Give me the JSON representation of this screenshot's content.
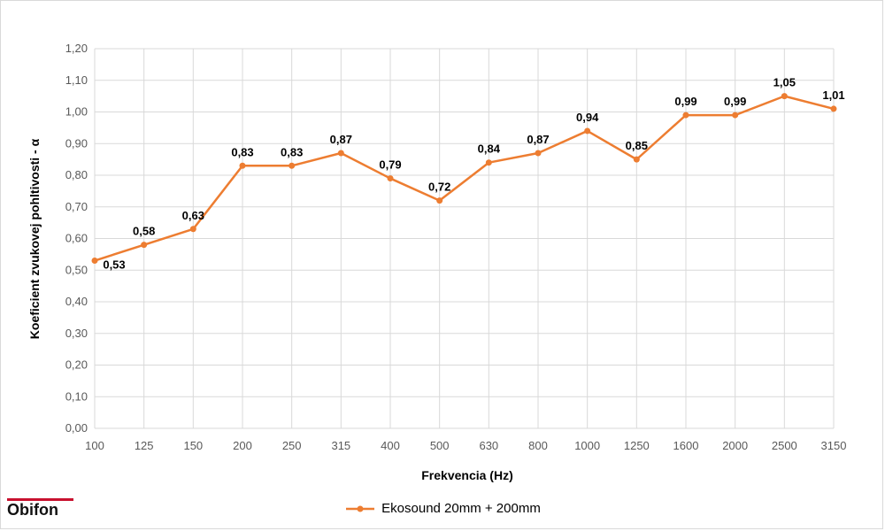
{
  "logo": {
    "text": "Obifon",
    "bar_color": "#c8102e"
  },
  "chart_data": {
    "type": "line",
    "categories": [
      "100",
      "125",
      "150",
      "200",
      "250",
      "315",
      "400",
      "500",
      "630",
      "800",
      "1000",
      "1250",
      "1600",
      "2000",
      "2500",
      "3150"
    ],
    "series": [
      {
        "name": "Ekosound 20mm + 200mm",
        "values": [
          0.53,
          0.58,
          0.63,
          0.83,
          0.83,
          0.87,
          0.79,
          0.72,
          0.84,
          0.87,
          0.94,
          0.85,
          0.99,
          0.99,
          1.05,
          1.01
        ],
        "labels": [
          "0,53",
          "0,58",
          "0,63",
          "0,83",
          "0,83",
          "0,87",
          "0,79",
          "0,72",
          "0,84",
          "0,87",
          "0,94",
          "0,85",
          "0,99",
          "0,99",
          "1,05",
          "1,01"
        ],
        "color": "#ed7d31"
      }
    ],
    "xlabel": "Frekvencia (Hz)",
    "ylabel": "Koeficient zvukovej pohltivosti - α",
    "ylim": [
      0,
      1.2
    ],
    "yticks": [
      "0,00",
      "0,10",
      "0,20",
      "0,30",
      "0,40",
      "0,50",
      "0,60",
      "0,70",
      "0,80",
      "0,90",
      "1,00",
      "1,10",
      "1,20"
    ],
    "grid": true,
    "legend_position": "bottom"
  }
}
